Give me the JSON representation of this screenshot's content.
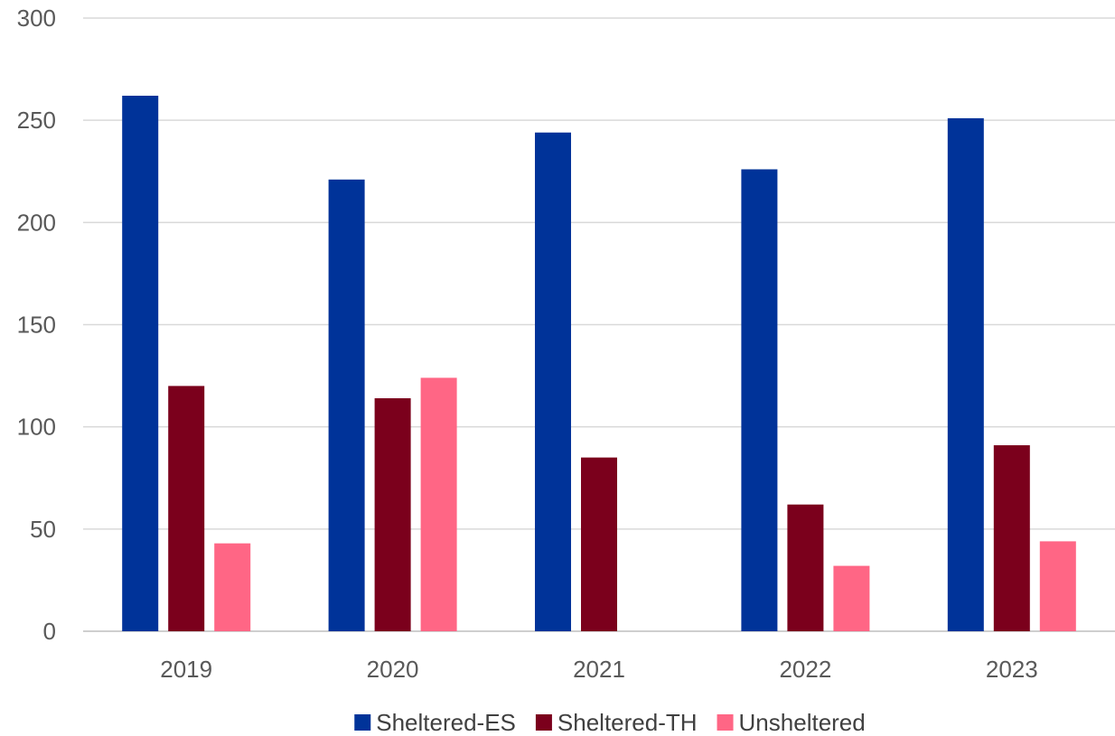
{
  "chart_data": {
    "type": "bar",
    "title": "",
    "xlabel": "",
    "ylabel": "",
    "categories": [
      "2019",
      "2020",
      "2021",
      "2022",
      "2023"
    ],
    "series": [
      {
        "name": "Sheltered-ES",
        "color": "#003399",
        "values": [
          262,
          221,
          244,
          226,
          251
        ]
      },
      {
        "name": "Sheltered-TH",
        "color": "#7B001C",
        "values": [
          120,
          114,
          85,
          62,
          91
        ]
      },
      {
        "name": "Unsheltered",
        "color": "#FF6685",
        "values": [
          43,
          124,
          0,
          32,
          44
        ]
      }
    ],
    "ylim": [
      0,
      300
    ],
    "yticks": [
      0,
      50,
      100,
      150,
      200,
      250,
      300
    ],
    "grid": true,
    "legend_position": "bottom"
  }
}
